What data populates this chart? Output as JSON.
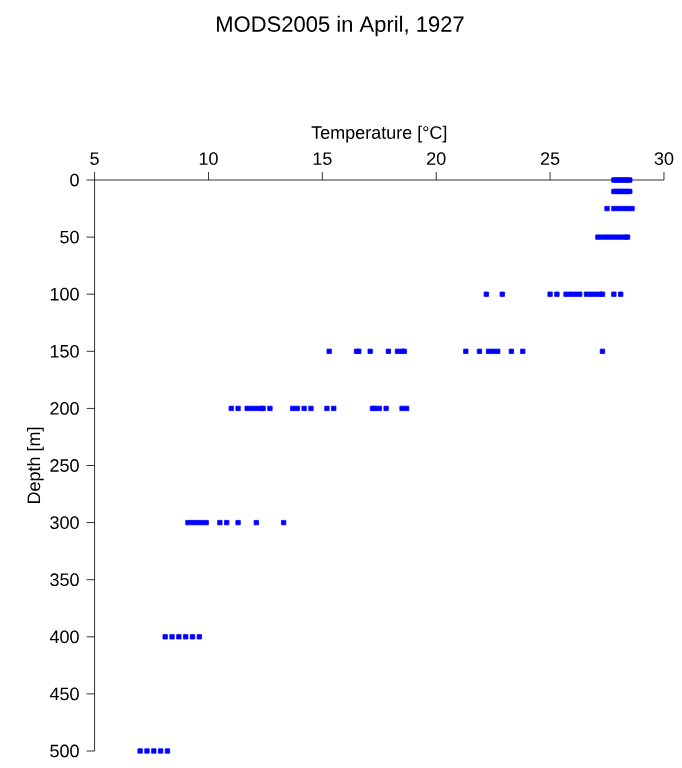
{
  "chart_data": {
    "type": "scatter",
    "title": "MODS2005 in April, 1927",
    "xlabel": "Temperature [°C]",
    "ylabel": "Depth [m]",
    "series": [
      {
        "color": "#0000ff",
        "x": [
          27.8,
          27.9,
          28.0,
          28.1,
          28.2,
          28.3,
          28.4,
          28.5,
          27.8,
          27.9,
          28.0,
          28.1,
          28.2,
          28.3,
          28.4,
          28.5,
          27.5,
          27.8,
          28.0,
          28.2,
          28.4,
          28.6,
          27.1,
          27.3,
          27.5,
          27.7,
          27.9,
          28.1,
          28.3,
          28.4,
          22.2,
          22.9,
          25.0,
          25.3,
          25.7,
          25.9,
          26.1,
          26.3,
          26.6,
          26.8,
          27.0,
          27.2,
          27.3,
          27.8,
          28.1,
          15.3,
          16.5,
          16.6,
          17.1,
          17.9,
          18.3,
          18.5,
          18.6,
          21.3,
          21.9,
          22.3,
          22.5,
          22.7,
          23.3,
          23.8,
          27.3,
          11.0,
          11.3,
          11.7,
          11.9,
          12.1,
          12.3,
          12.4,
          12.7,
          13.7,
          13.9,
          14.2,
          14.5,
          15.2,
          15.5,
          17.2,
          17.3,
          17.5,
          17.8,
          18.5,
          18.7,
          9.1,
          9.3,
          9.5,
          9.7,
          9.9,
          10.5,
          10.8,
          11.3,
          12.1,
          13.3,
          8.1,
          8.4,
          8.7,
          9.0,
          9.3,
          9.6,
          7.0,
          7.3,
          7.6,
          7.9,
          8.2
        ],
        "values": [
          0,
          0,
          0,
          0,
          0,
          0,
          0,
          0,
          10,
          10,
          10,
          10,
          10,
          10,
          10,
          10,
          25,
          25,
          25,
          25,
          25,
          25,
          50,
          50,
          50,
          50,
          50,
          50,
          50,
          50,
          100,
          100,
          100,
          100,
          100,
          100,
          100,
          100,
          100,
          100,
          100,
          100,
          100,
          100,
          100,
          150,
          150,
          150,
          150,
          150,
          150,
          150,
          150,
          150,
          150,
          150,
          150,
          150,
          150,
          150,
          150,
          200,
          200,
          200,
          200,
          200,
          200,
          200,
          200,
          200,
          200,
          200,
          200,
          200,
          200,
          200,
          200,
          200,
          200,
          200,
          200,
          300,
          300,
          300,
          300,
          300,
          300,
          300,
          300,
          300,
          300,
          400,
          400,
          400,
          400,
          400,
          400,
          500,
          500,
          500,
          500,
          500
        ]
      }
    ],
    "marker": "square",
    "xlim": [
      5,
      30
    ],
    "xticks": [
      5,
      10,
      15,
      20,
      25,
      30
    ],
    "ylim": [
      500,
      0
    ],
    "yticks": [
      0,
      50,
      100,
      150,
      200,
      250,
      300,
      350,
      400,
      450,
      500
    ]
  }
}
